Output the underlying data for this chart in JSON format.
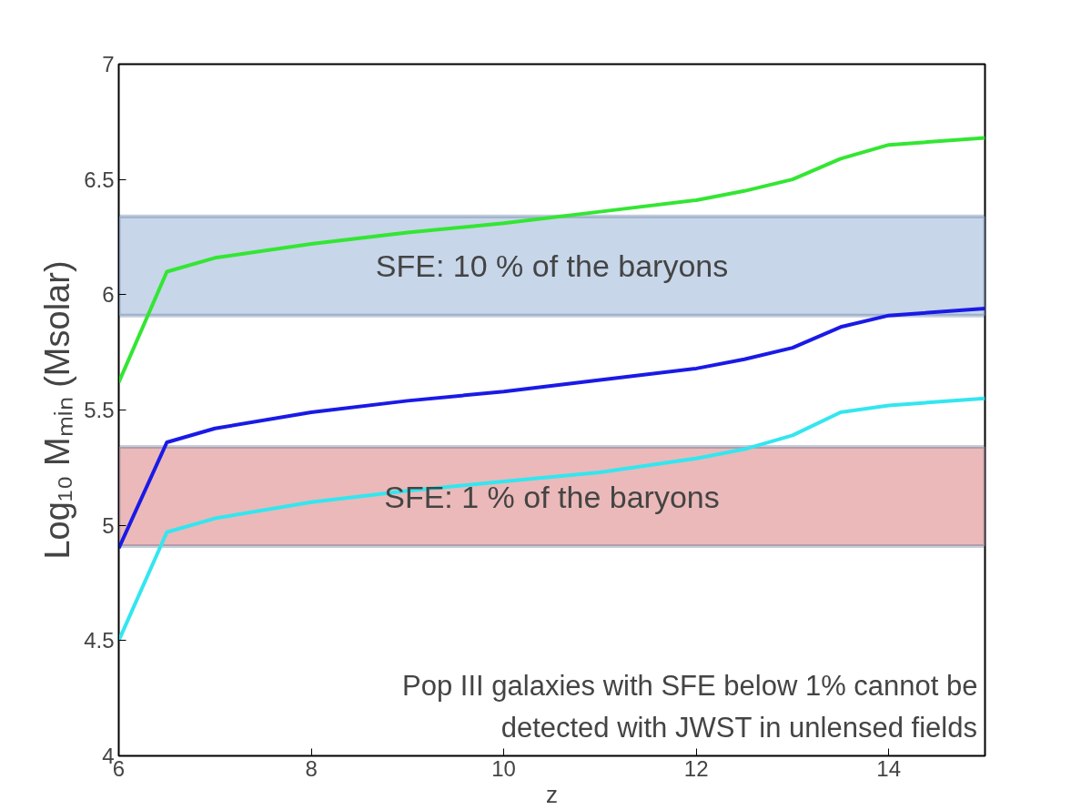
{
  "chart_data": {
    "type": "line",
    "xlabel": "z",
    "ylabel": "Log₁₀ Mₘᵢₙ (Msolar)",
    "x": [
      6,
      6.5,
      7,
      8,
      9,
      10,
      11,
      12,
      12.5,
      13,
      13.5,
      14,
      15
    ],
    "series": [
      {
        "color": "#33e633",
        "values": [
          5.62,
          6.1,
          6.16,
          6.22,
          6.27,
          6.31,
          6.36,
          6.41,
          6.45,
          6.5,
          6.59,
          6.65,
          6.68
        ]
      },
      {
        "color": "#1a1ae6",
        "values": [
          4.9,
          5.36,
          5.42,
          5.49,
          5.54,
          5.58,
          5.63,
          5.68,
          5.72,
          5.77,
          5.86,
          5.91,
          5.94
        ]
      },
      {
        "color": "#33e6f0",
        "values": [
          4.5,
          4.97,
          5.03,
          5.1,
          5.15,
          5.19,
          5.23,
          5.29,
          5.33,
          5.39,
          5.49,
          5.52,
          5.55
        ]
      }
    ],
    "bands": [
      {
        "axis": "y",
        "from": 5.91,
        "to": 6.34,
        "label": "SFE: 10 % of the baryons",
        "color": "#b9cce4"
      },
      {
        "axis": "y",
        "from": 4.91,
        "to": 5.34,
        "label": "SFE: 1 % of the baryons",
        "color": "#e6a8a8"
      }
    ],
    "annotations": [
      "Pop III galaxies with SFE below 1% cannot be\ndetected with JWST in unlensed fields"
    ],
    "xlim": [
      6,
      15
    ],
    "ylim": [
      4,
      7
    ],
    "xticks": [
      6,
      8,
      10,
      12,
      14
    ],
    "yticks": [
      4,
      4.5,
      5,
      5.5,
      6,
      6.5,
      7
    ],
    "grid": false,
    "marker": "none",
    "line_style": "solid"
  }
}
